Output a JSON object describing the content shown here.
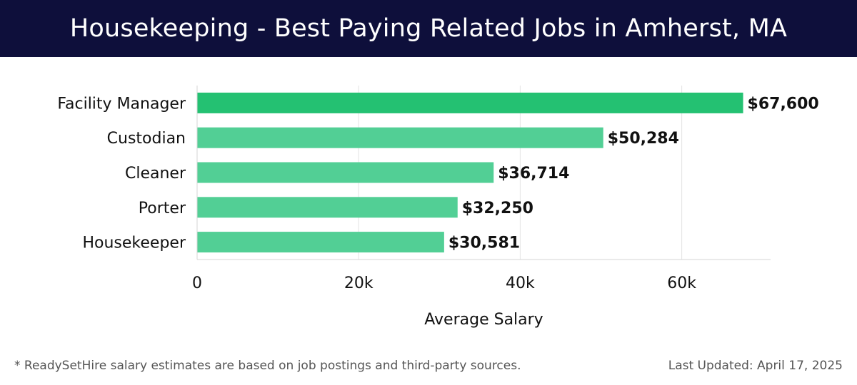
{
  "header": {
    "title": "Housekeeping - Best Paying Related Jobs in Amherst, MA"
  },
  "colors": {
    "header_bg": "#0e0f3b",
    "bar_top": "#24c172",
    "bar_light": "#52cf95"
  },
  "chart_data": {
    "type": "bar",
    "orientation": "horizontal",
    "categories": [
      "Facility Manager",
      "Custodian",
      "Cleaner",
      "Porter",
      "Housekeeper"
    ],
    "values": [
      67600,
      50284,
      36714,
      32250,
      30581
    ],
    "value_labels": [
      "$67,600",
      "$50,284",
      "$36,714",
      "$32,250",
      "$30,581"
    ],
    "xlabel": "Average Salary",
    "ylabel": "",
    "xlim": [
      0,
      71000
    ],
    "x_ticks": [
      0,
      20000,
      40000,
      60000
    ],
    "x_tick_labels": [
      "0",
      "20k",
      "40k",
      "60k"
    ],
    "grid": true
  },
  "footer": {
    "note": "* ReadySetHire salary estimates are based on job postings and third-party sources.",
    "updated": "Last Updated: April 17, 2025"
  }
}
